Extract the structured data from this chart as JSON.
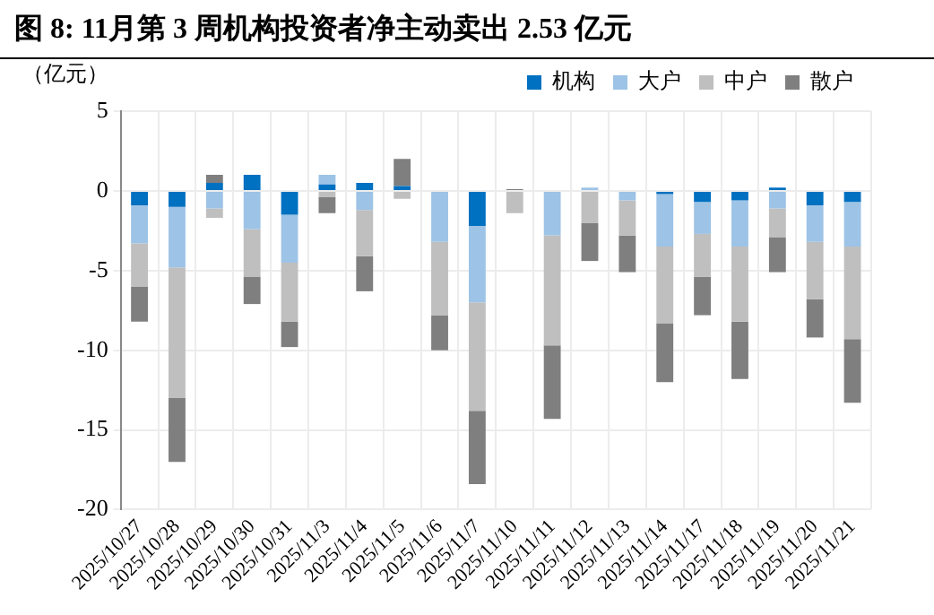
{
  "chart_data": {
    "type": "bar",
    "title": "图 8:  11月第 3 周机构投资者净主动卖出 2.53 亿元",
    "ylabel": "（亿元）",
    "categories": [
      "2025/10/27",
      "2025/10/28",
      "2025/10/29",
      "2025/10/30",
      "2025/10/31",
      "2025/11/3",
      "2025/11/4",
      "2025/11/5",
      "2025/11/6",
      "2025/11/7",
      "2025/11/10",
      "2025/11/11",
      "2025/11/12",
      "2025/11/13",
      "2025/11/14",
      "2025/11/17",
      "2025/11/18",
      "2025/11/19",
      "2025/11/20",
      "2025/11/21"
    ],
    "stacked": true,
    "series": [
      {
        "name": "机构",
        "color": "#0070c0",
        "values": [
          -0.9,
          -1.0,
          0.5,
          1.0,
          -1.5,
          0.4,
          0.5,
          0.3,
          0,
          -2.2,
          0,
          0,
          0,
          0,
          -0.2,
          -0.7,
          -0.6,
          0.2,
          -0.9,
          -0.7
        ]
      },
      {
        "name": "大户",
        "color": "#9dc3e6",
        "values": [
          -2.4,
          -3.8,
          -1.1,
          -2.4,
          -3.0,
          0.6,
          -1.2,
          null,
          -3.2,
          -4.8,
          0,
          -2.8,
          0.2,
          -0.6,
          -3.3,
          -2.0,
          -2.9,
          -1.1,
          -2.3,
          -2.8
        ]
      },
      {
        "name": "中户",
        "color": "#bfbfbf",
        "values": [
          -2.7,
          -8.2,
          -0.6,
          -3.0,
          -3.7,
          -0.4,
          -2.9,
          -0.5,
          -4.6,
          -6.8,
          -1.4,
          -6.9,
          -2.0,
          -2.2,
          -4.8,
          -2.7,
          -4.7,
          -1.8,
          -3.6,
          -5.8
        ]
      },
      {
        "name": "散户",
        "color": "#7f7f7f",
        "values": [
          -2.2,
          -4.0,
          0.5,
          -1.7,
          -1.6,
          -1.0,
          -2.2,
          1.7,
          -2.2,
          -4.6,
          0.1,
          -4.6,
          -2.4,
          -2.3,
          -3.7,
          -2.4,
          -3.6,
          -2.2,
          -2.4,
          -4.0
        ]
      }
    ],
    "ylim": [
      -20,
      5
    ],
    "yticks": [
      -20,
      -15,
      -10,
      -5,
      0,
      5
    ],
    "grid": true,
    "legend": "top right"
  }
}
